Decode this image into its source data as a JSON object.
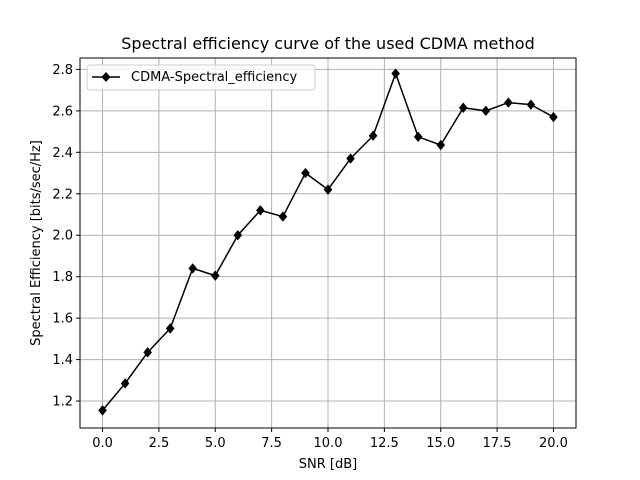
{
  "chart_data": {
    "type": "line",
    "title": "Spectral efficiency curve of the used CDMA method",
    "xlabel": "SNR [dB]",
    "ylabel": "Spectral Efficiency [bits/sec/Hz]",
    "xlim": [
      -1,
      21
    ],
    "ylim": [
      1.07,
      2.855
    ],
    "xticks": [
      0.0,
      2.5,
      5.0,
      7.5,
      10.0,
      12.5,
      15.0,
      17.5,
      20.0
    ],
    "xtick_labels": [
      "0.0",
      "2.5",
      "5.0",
      "7.5",
      "10.0",
      "12.5",
      "15.0",
      "17.5",
      "20.0"
    ],
    "yticks": [
      1.2,
      1.4,
      1.6,
      1.8,
      2.0,
      2.2,
      2.4,
      2.6,
      2.8
    ],
    "ytick_labels": [
      "1.2",
      "1.4",
      "1.6",
      "1.8",
      "2.0",
      "2.2",
      "2.4",
      "2.6",
      "2.8"
    ],
    "grid": true,
    "legend_position": "top-left",
    "series": [
      {
        "name": "CDMA-Spectral_efficiency",
        "color": "#000000",
        "marker": "diamond",
        "x": [
          0,
          1,
          2,
          3,
          4,
          5,
          6,
          7,
          8,
          9,
          10,
          11,
          12,
          13,
          14,
          15,
          16,
          17,
          18,
          19,
          20
        ],
        "y": [
          1.155,
          1.285,
          1.435,
          1.55,
          1.84,
          1.805,
          2.0,
          2.12,
          2.09,
          2.3,
          2.22,
          2.37,
          2.48,
          2.78,
          2.475,
          2.435,
          2.615,
          2.6,
          2.64,
          2.63,
          2.57
        ]
      }
    ]
  }
}
